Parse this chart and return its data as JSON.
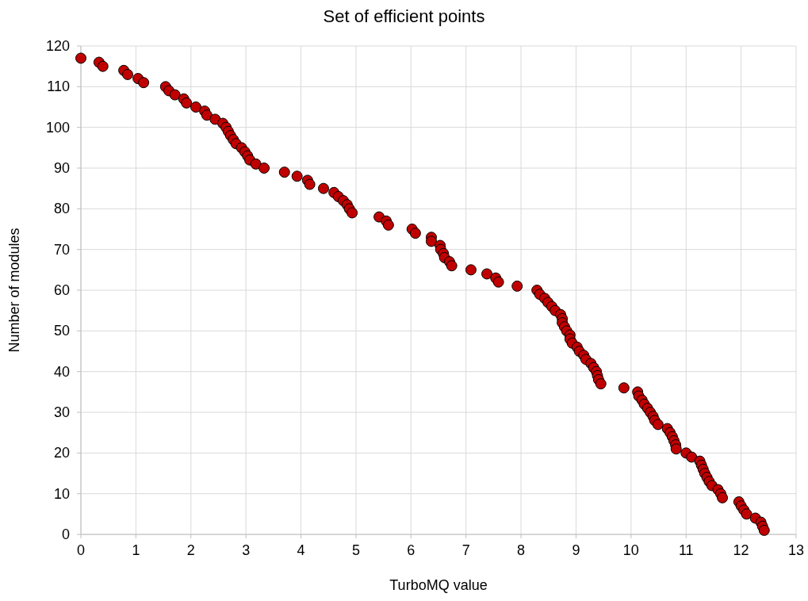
{
  "chart_data": {
    "type": "scatter",
    "title": "Set of efficient points",
    "xlabel": "TurboMQ value",
    "ylabel": "Number of modules",
    "xlim": [
      0,
      13
    ],
    "xticks": [
      0,
      1,
      2,
      3,
      4,
      5,
      6,
      7,
      8,
      9,
      10,
      11,
      12,
      13
    ],
    "ylim": [
      0,
      120
    ],
    "yticks": [
      0,
      10,
      20,
      30,
      40,
      50,
      60,
      70,
      80,
      90,
      100,
      110,
      120
    ],
    "grid": true,
    "marker": "circle",
    "series": [
      {
        "color": "#c00000",
        "x": [
          0,
          0.33,
          0.4,
          0.78,
          0.85,
          1.04,
          1.14,
          1.54,
          1.6,
          1.71,
          1.87,
          1.92,
          2.09,
          2.25,
          2.29,
          2.44,
          2.58,
          2.64,
          2.68,
          2.72,
          2.77,
          2.82,
          2.92,
          2.98,
          3.03,
          3.07,
          3.18,
          3.33,
          3.7,
          3.93,
          4.12,
          4.16,
          4.41,
          4.6,
          4.68,
          4.77,
          4.84,
          4.88,
          4.93,
          5.42,
          5.55,
          5.59,
          6.02,
          6.08,
          6.37,
          6.37,
          6.53,
          6.54,
          6.59,
          6.61,
          6.7,
          6.74,
          7.09,
          7.38,
          7.54,
          7.59,
          7.93,
          8.29,
          8.34,
          8.43,
          8.49,
          8.56,
          8.62,
          8.72,
          8.75,
          8.75,
          8.79,
          8.83,
          8.89,
          8.89,
          8.93,
          9.02,
          9.06,
          9.14,
          9.18,
          9.27,
          9.32,
          9.37,
          9.39,
          9.41,
          9.45,
          9.87,
          10.12,
          10.14,
          10.2,
          10.24,
          10.3,
          10.35,
          10.4,
          10.43,
          10.49,
          10.66,
          10.71,
          10.75,
          10.78,
          10.81,
          10.82,
          11,
          11.1,
          11.25,
          11.28,
          11.31,
          11.34,
          11.38,
          11.42,
          11.47,
          11.58,
          11.63,
          11.66,
          11.96,
          12,
          12.05,
          12.1,
          12.26,
          12.36,
          12.39,
          12.42
        ],
        "values": [
          117,
          116,
          115,
          114,
          113,
          112,
          111,
          110,
          109,
          108,
          107,
          106,
          105,
          104,
          103,
          102,
          101,
          100,
          99,
          98,
          97,
          96,
          95,
          94,
          93,
          92,
          91,
          90,
          89,
          88,
          87,
          86,
          85,
          84,
          83,
          82,
          81,
          80,
          79,
          78,
          77,
          76,
          75,
          74,
          73,
          72,
          71,
          70,
          69,
          68,
          67,
          66,
          65,
          64,
          63,
          62,
          61,
          60,
          59,
          58,
          57,
          56,
          55,
          54,
          53,
          52,
          51,
          50,
          49,
          48,
          47,
          46,
          45,
          44,
          43,
          42,
          41,
          40,
          39,
          38,
          37,
          36,
          35,
          34,
          33,
          32,
          31,
          30,
          29,
          28,
          27,
          26,
          25,
          24,
          23,
          22,
          21,
          20,
          19,
          18,
          17,
          16,
          15,
          14,
          13,
          12,
          11,
          10,
          9,
          8,
          7,
          6,
          5,
          4,
          3,
          2,
          1
        ]
      }
    ]
  }
}
